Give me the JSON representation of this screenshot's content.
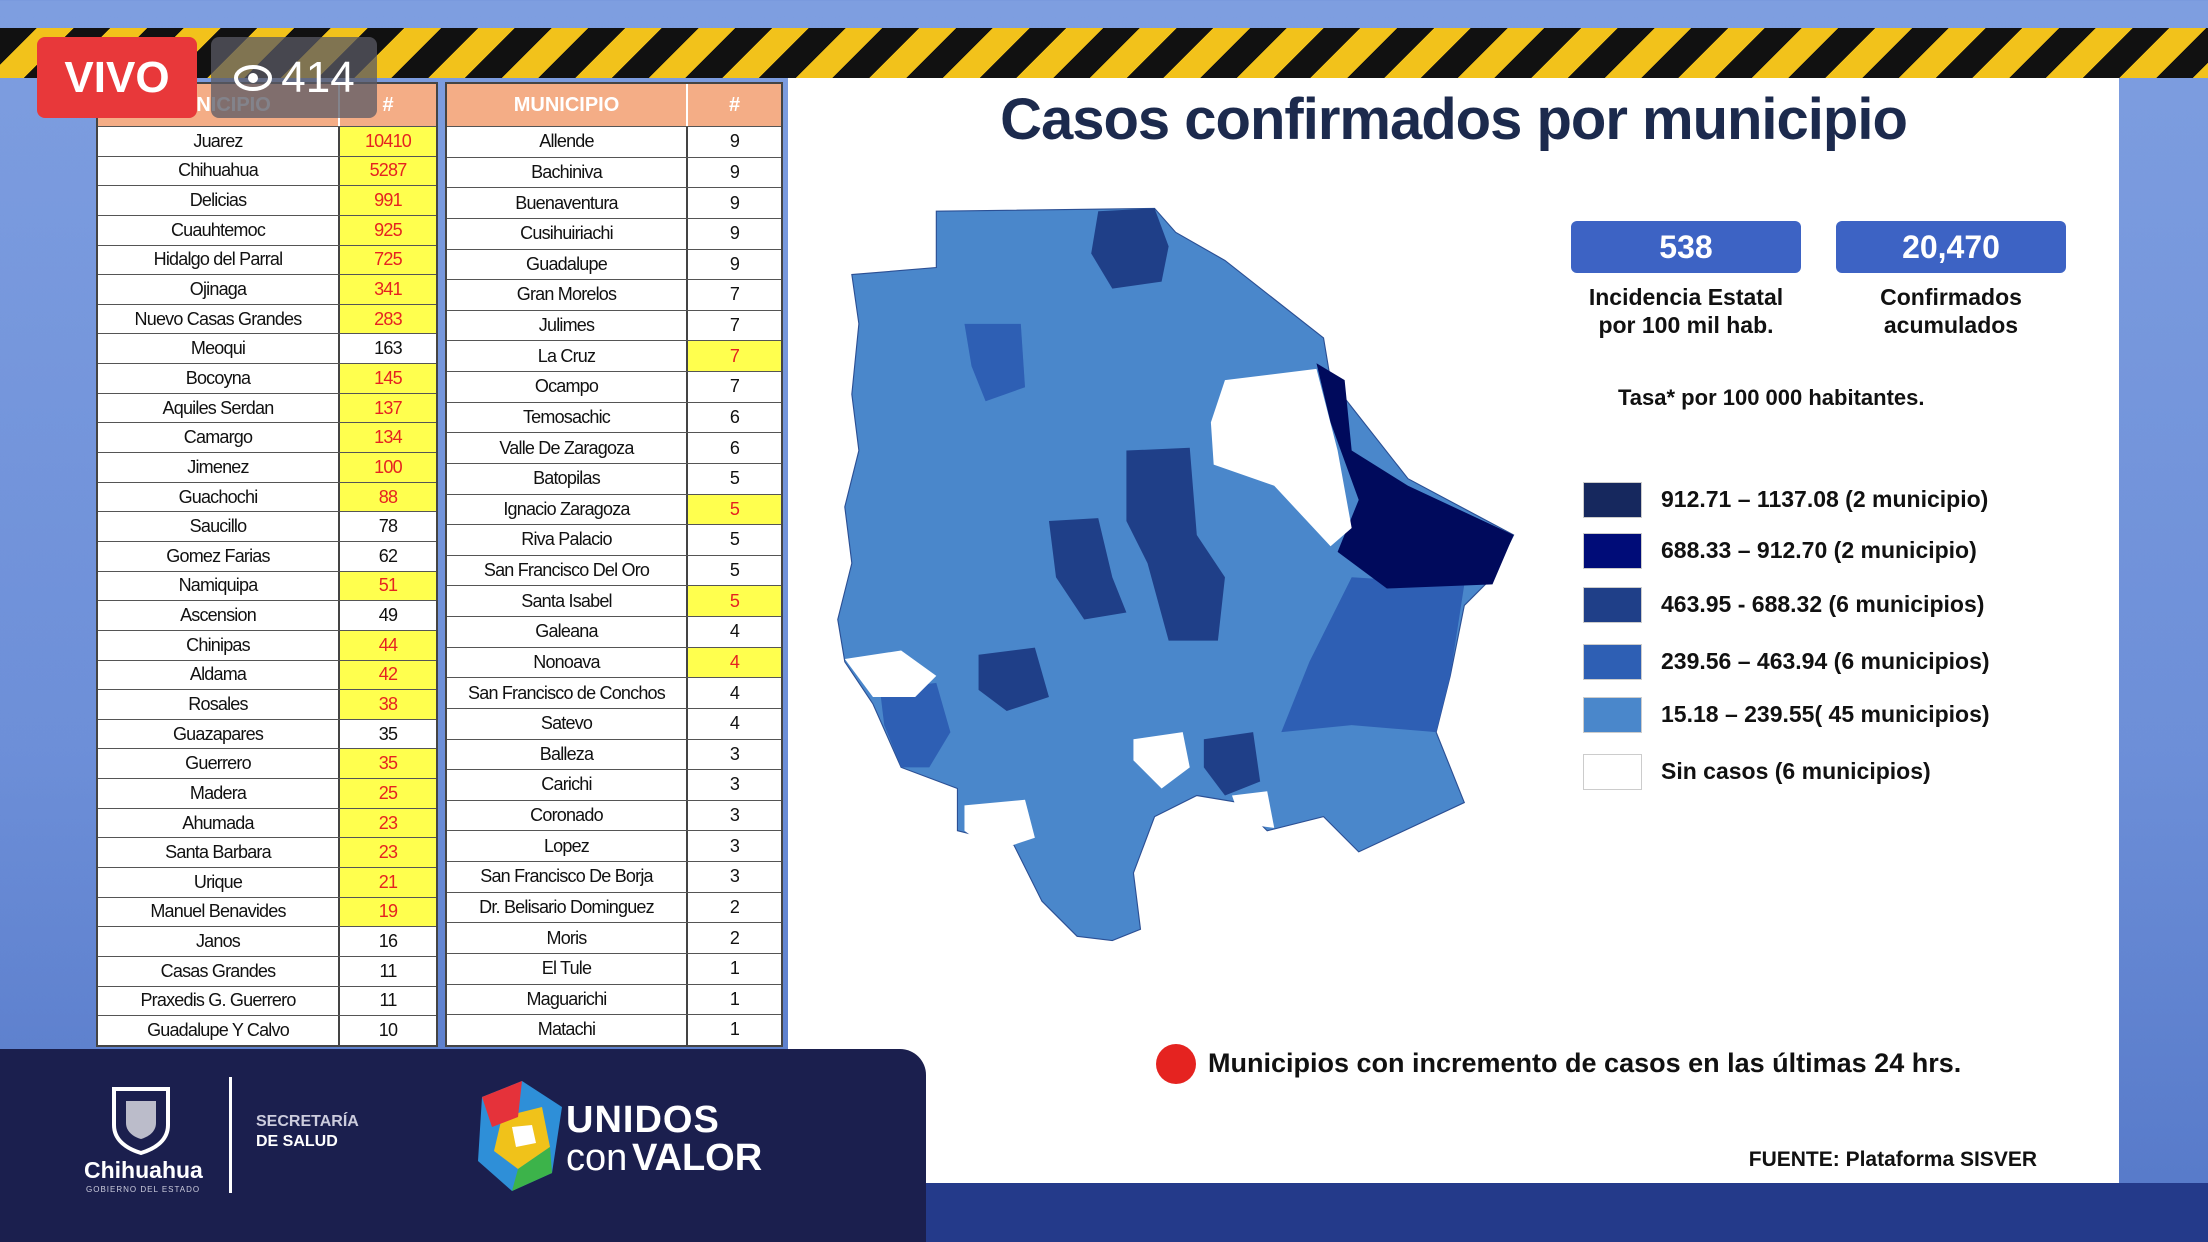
{
  "live": {
    "badge": "VIVO",
    "viewers": 414
  },
  "tables": [
    {
      "headers": [
        "MUNICIPIO",
        "#"
      ],
      "rows": [
        {
          "name": "Juarez",
          "count": 10410,
          "highlight": true
        },
        {
          "name": "Chihuahua",
          "count": 5287,
          "highlight": true
        },
        {
          "name": "Delicias",
          "count": 991,
          "highlight": true
        },
        {
          "name": "Cuauhtemoc",
          "count": 925,
          "highlight": true
        },
        {
          "name": "Hidalgo del Parral",
          "count": 725,
          "highlight": true
        },
        {
          "name": "Ojinaga",
          "count": 341,
          "highlight": true
        },
        {
          "name": "Nuevo Casas Grandes",
          "count": 283,
          "highlight": true
        },
        {
          "name": "Meoqui",
          "count": 163,
          "highlight": false
        },
        {
          "name": "Bocoyna",
          "count": 145,
          "highlight": true
        },
        {
          "name": "Aquiles Serdan",
          "count": 137,
          "highlight": true
        },
        {
          "name": "Camargo",
          "count": 134,
          "highlight": true
        },
        {
          "name": "Jimenez",
          "count": 100,
          "highlight": true
        },
        {
          "name": "Guachochi",
          "count": 88,
          "highlight": true
        },
        {
          "name": "Saucillo",
          "count": 78,
          "highlight": false
        },
        {
          "name": "Gomez Farias",
          "count": 62,
          "highlight": false
        },
        {
          "name": "Namiquipa",
          "count": 51,
          "highlight": true
        },
        {
          "name": "Ascension",
          "count": 49,
          "highlight": false
        },
        {
          "name": "Chinipas",
          "count": 44,
          "highlight": true
        },
        {
          "name": "Aldama",
          "count": 42,
          "highlight": true
        },
        {
          "name": "Rosales",
          "count": 38,
          "highlight": true
        },
        {
          "name": "Guazapares",
          "count": 35,
          "highlight": false
        },
        {
          "name": "Guerrero",
          "count": 35,
          "highlight": true
        },
        {
          "name": "Madera",
          "count": 25,
          "highlight": true
        },
        {
          "name": "Ahumada",
          "count": 23,
          "highlight": true
        },
        {
          "name": "Santa Barbara",
          "count": 23,
          "highlight": true
        },
        {
          "name": "Urique",
          "count": 21,
          "highlight": true
        },
        {
          "name": "Manuel Benavides",
          "count": 19,
          "highlight": true
        },
        {
          "name": "Janos",
          "count": 16,
          "highlight": false
        },
        {
          "name": "Casas Grandes",
          "count": 11,
          "highlight": false
        },
        {
          "name": "Praxedis G. Guerrero",
          "count": 11,
          "highlight": false
        },
        {
          "name": "Guadalupe Y Calvo",
          "count": 10,
          "highlight": false
        }
      ]
    },
    {
      "headers": [
        "MUNICIPIO",
        "#"
      ],
      "rows": [
        {
          "name": "Allende",
          "count": 9,
          "highlight": false
        },
        {
          "name": "Bachiniva",
          "count": 9,
          "highlight": false
        },
        {
          "name": "Buenaventura",
          "count": 9,
          "highlight": false
        },
        {
          "name": "Cusihuiriachi",
          "count": 9,
          "highlight": false
        },
        {
          "name": "Guadalupe",
          "count": 9,
          "highlight": false
        },
        {
          "name": "Gran Morelos",
          "count": 7,
          "highlight": false
        },
        {
          "name": "Julimes",
          "count": 7,
          "highlight": false
        },
        {
          "name": "La Cruz",
          "count": 7,
          "highlight": true
        },
        {
          "name": "Ocampo",
          "count": 7,
          "highlight": false
        },
        {
          "name": "Temosachic",
          "count": 6,
          "highlight": false
        },
        {
          "name": "Valle De Zaragoza",
          "count": 6,
          "highlight": false
        },
        {
          "name": "Batopilas",
          "count": 5,
          "highlight": false
        },
        {
          "name": "Ignacio Zaragoza",
          "count": 5,
          "highlight": true
        },
        {
          "name": "Riva Palacio",
          "count": 5,
          "highlight": false
        },
        {
          "name": "San Francisco Del Oro",
          "count": 5,
          "highlight": false
        },
        {
          "name": "Santa Isabel",
          "count": 5,
          "highlight": true
        },
        {
          "name": "Galeana",
          "count": 4,
          "highlight": false
        },
        {
          "name": "Nonoava",
          "count": 4,
          "highlight": true
        },
        {
          "name": "San Francisco de Conchos",
          "count": 4,
          "highlight": false
        },
        {
          "name": "Satevo",
          "count": 4,
          "highlight": false
        },
        {
          "name": "Balleza",
          "count": 3,
          "highlight": false
        },
        {
          "name": "Carichi",
          "count": 3,
          "highlight": false
        },
        {
          "name": "Coronado",
          "count": 3,
          "highlight": false
        },
        {
          "name": "Lopez",
          "count": 3,
          "highlight": false
        },
        {
          "name": "San Francisco De Borja",
          "count": 3,
          "highlight": false
        },
        {
          "name": "Dr. Belisario Dominguez",
          "count": 2,
          "highlight": false
        },
        {
          "name": "Moris",
          "count": 2,
          "highlight": false
        },
        {
          "name": "El Tule",
          "count": 1,
          "highlight": false
        },
        {
          "name": "Maguarichi",
          "count": 1,
          "highlight": false
        },
        {
          "name": "Matachi",
          "count": 1,
          "highlight": false
        }
      ]
    }
  ],
  "slide": {
    "title": "Casos confirmados por municipio",
    "stats": [
      {
        "value": 538,
        "label_lines": [
          "Incidencia Estatal",
          "por 100 mil hab."
        ]
      },
      {
        "value": "20,470",
        "label_lines": [
          "Confirmados",
          "acumulados"
        ]
      }
    ],
    "rate_note": "Tasa* por 100 000 habitantes.",
    "legend": [
      {
        "label": "912.71 – 1137.08 (2 municipio)",
        "color": "#16285e"
      },
      {
        "label": "688.33 – 912.70 (2 municipio)",
        "color": "#000c78"
      },
      {
        "label": "463.95  - 688.32 (6 municipios)",
        "color": "#1f3f88"
      },
      {
        "label": "239.56 – 463.94 (6 municipios)",
        "color": "#2e5fb4"
      },
      {
        "label": "15.18 – 239.55( 45 municipios)",
        "color": "#4a87cb"
      },
      {
        "label": "Sin casos (6 municipios)",
        "color": "#ffffff"
      }
    ],
    "increment_note": "Municipios con incremento de casos en las últimas 24 hrs.",
    "increment_color": "#e52320",
    "source": "FUENTE: Plataforma SISVER"
  },
  "footer": {
    "state": "Chihuahua",
    "state_sub": "GOBIERNO DEL ESTADO",
    "dept_lines": [
      "SECRETARÍA",
      "DE SALUD"
    ],
    "slogan": [
      "UNIDOS",
      "con",
      "VALOR"
    ]
  }
}
